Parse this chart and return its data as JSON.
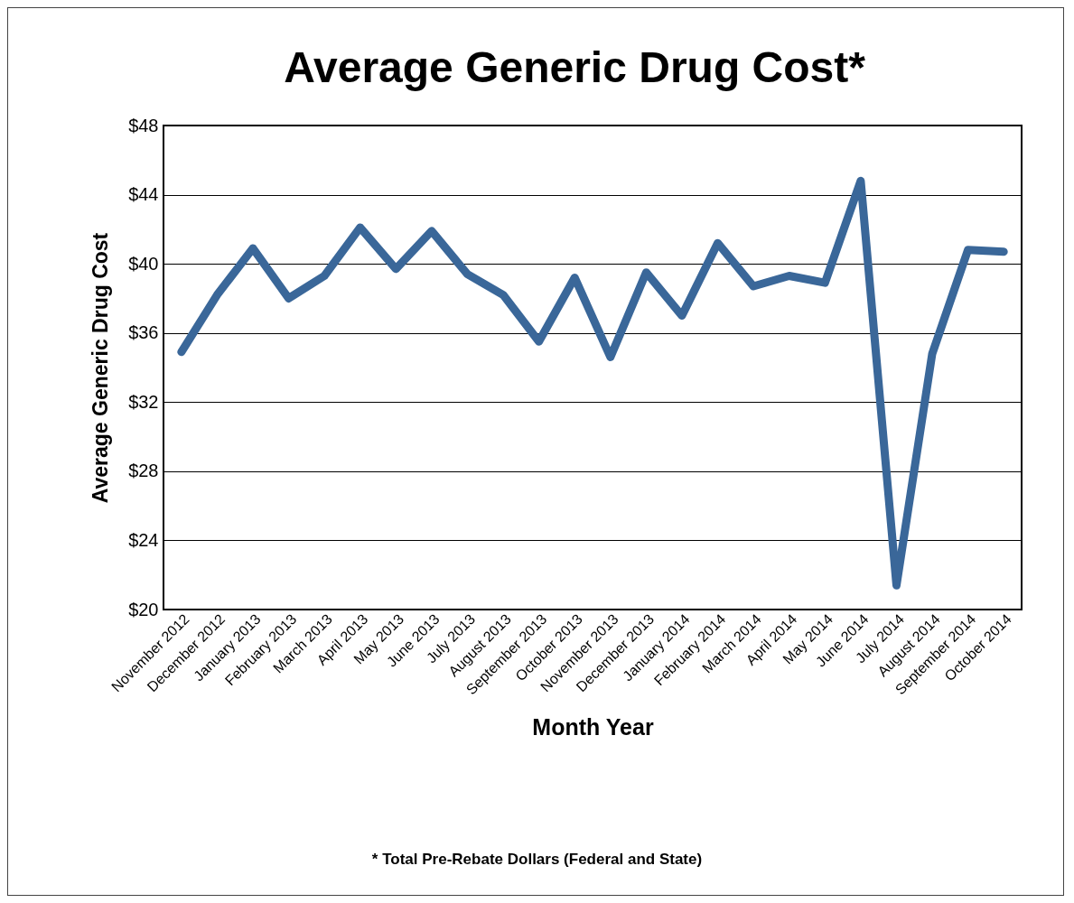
{
  "chart_data": {
    "type": "line",
    "title": "Average Generic Drug Cost*",
    "xlabel": "Month Year",
    "ylabel": "Average Generic Drug Cost",
    "categories": [
      "November 2012",
      "December 2012",
      "January 2013",
      "February 2013",
      "March 2013",
      "April 2013",
      "May 2013",
      "June 2013",
      "July 2013",
      "August 2013",
      "September 2013",
      "October 2013",
      "November 2013",
      "December 2013",
      "January 2014",
      "February 2014",
      "March 2014",
      "April 2014",
      "May 2014",
      "June 2014",
      "July 2014",
      "August 2014",
      "September 2014",
      "October 2014"
    ],
    "series": [
      {
        "color": "#3a6799",
        "values": [
          34.9,
          38.2,
          40.9,
          38.0,
          39.3,
          42.1,
          39.7,
          41.9,
          39.4,
          38.2,
          35.5,
          39.2,
          34.6,
          39.5,
          37.0,
          41.2,
          38.7,
          39.3,
          38.9,
          44.8,
          21.4,
          34.8,
          40.8,
          40.7
        ]
      }
    ],
    "ylim": [
      20,
      48
    ],
    "yticks": [
      {
        "value": 20,
        "label": "$20"
      },
      {
        "value": 24,
        "label": "$24"
      },
      {
        "value": 28,
        "label": "$28"
      },
      {
        "value": 32,
        "label": "$32"
      },
      {
        "value": 36,
        "label": "$36"
      },
      {
        "value": 40,
        "label": "$40"
      },
      {
        "value": 44,
        "label": "$44"
      },
      {
        "value": 48,
        "label": "$48"
      }
    ],
    "grid": "y",
    "marker": "none",
    "line_style": "solid",
    "annotations": [
      "* Total Pre-Rebate Dollars (Federal and State)"
    ]
  }
}
